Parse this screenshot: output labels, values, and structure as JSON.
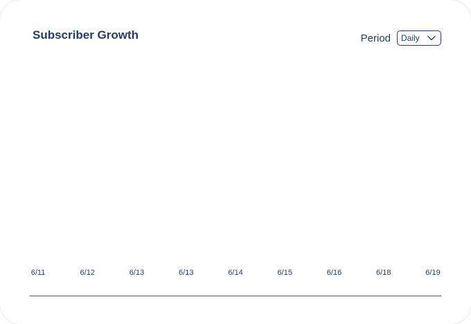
{
  "header": {
    "title": "Subscriber Growth",
    "period_label": "Period",
    "period_value": "Daily",
    "dropdown_icon": "chevron-down-icon"
  },
  "colors": {
    "primary": "#1f3d6e",
    "background": "#ffffff"
  },
  "chart_data": {
    "type": "line",
    "title": "Subscriber Growth",
    "categories": [
      "6/11",
      "6/12",
      "6/13",
      "6/13",
      "6/14",
      "6/15",
      "6/16",
      "6/18",
      "6/19"
    ],
    "series": [],
    "xlabel": "",
    "ylabel": "",
    "grid": false,
    "legend": "none"
  }
}
